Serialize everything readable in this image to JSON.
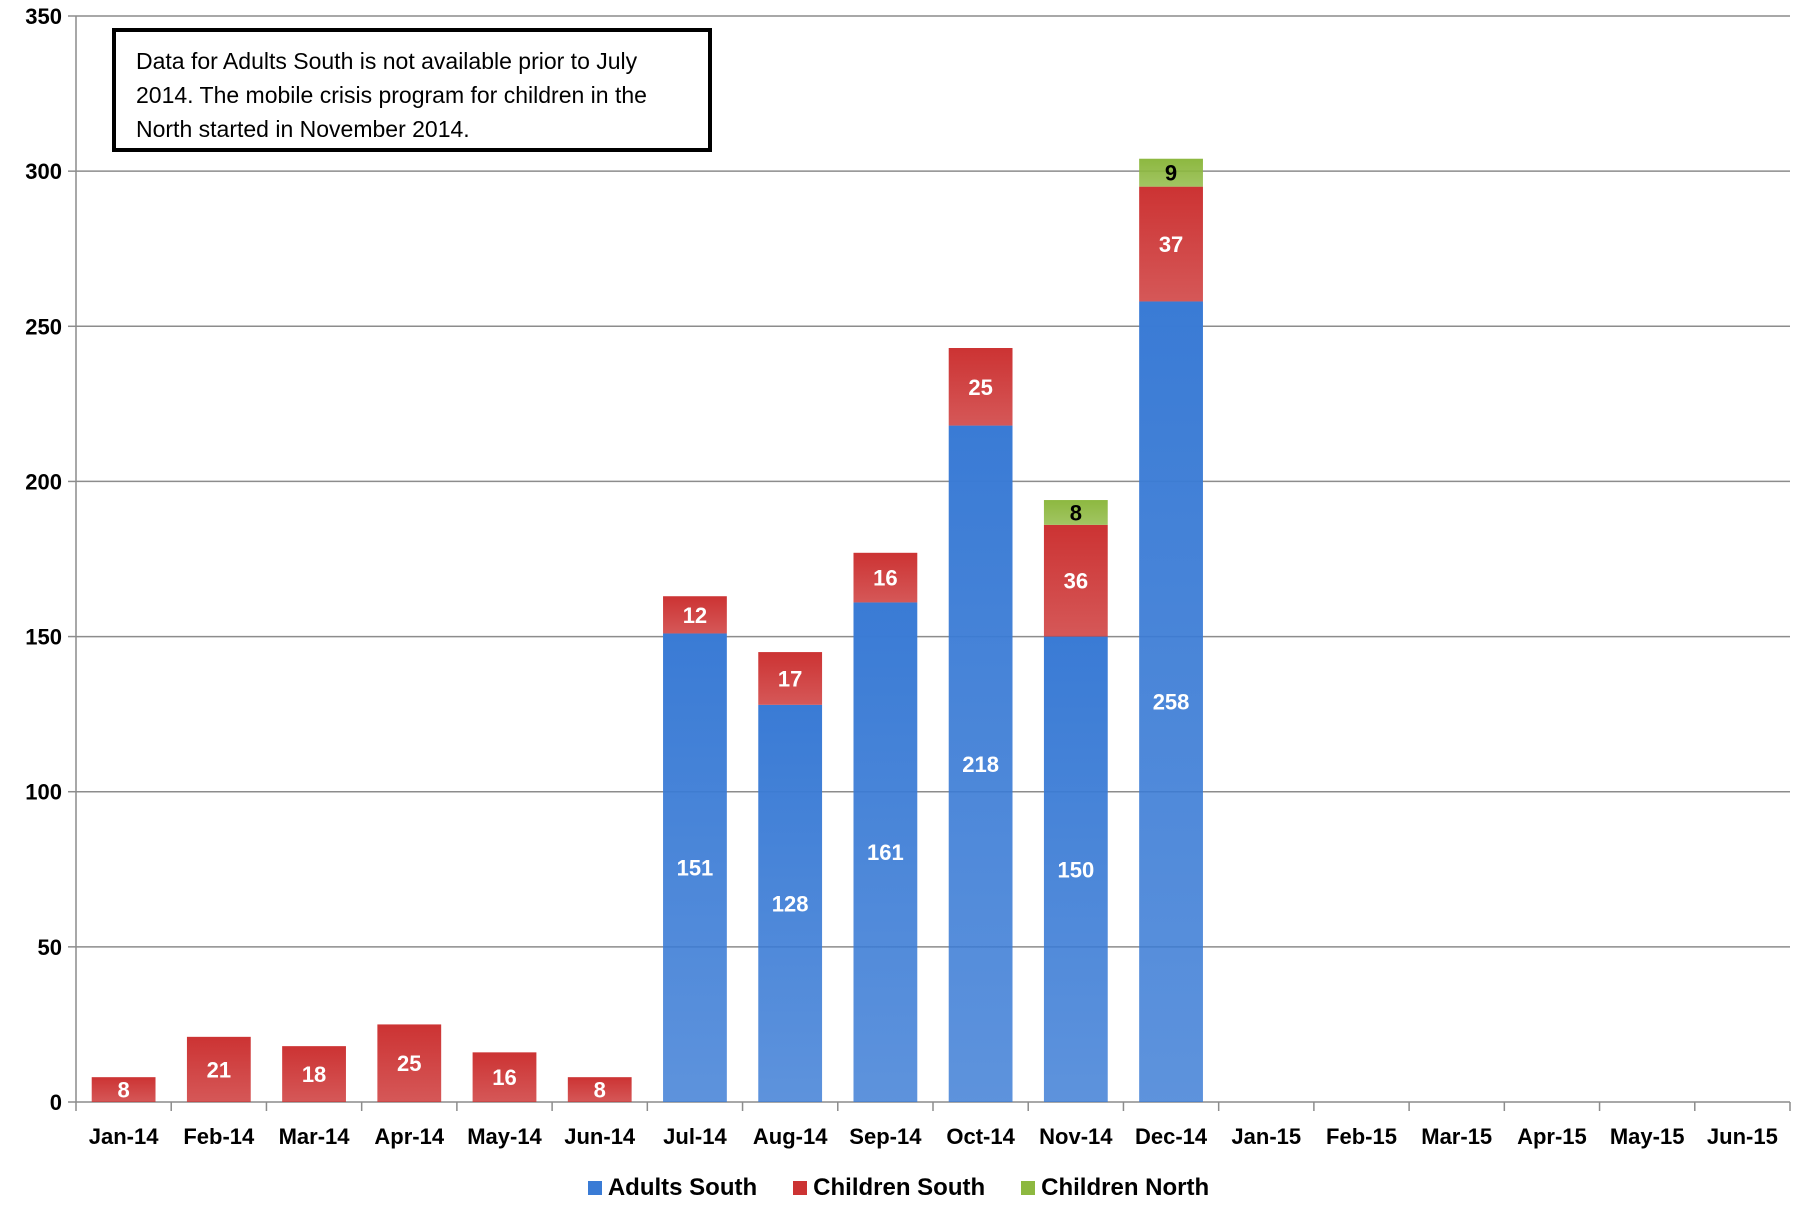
{
  "chart_data": {
    "type": "bar",
    "stacked": true,
    "categories": [
      "Jan-14",
      "Feb-14",
      "Mar-14",
      "Apr-14",
      "May-14",
      "Jun-14",
      "Jul-14",
      "Aug-14",
      "Sep-14",
      "Oct-14",
      "Nov-14",
      "Dec-14",
      "Jan-15",
      "Feb-15",
      "Mar-15",
      "Apr-15",
      "May-15",
      "Jun-15"
    ],
    "series": [
      {
        "name": "Adults South",
        "color": "#3a7bd5",
        "values": [
          null,
          null,
          null,
          null,
          null,
          null,
          151,
          128,
          161,
          218,
          150,
          258,
          null,
          null,
          null,
          null,
          null,
          null
        ]
      },
      {
        "name": "Children South",
        "color": "#cc3333",
        "values": [
          8,
          21,
          18,
          25,
          16,
          8,
          12,
          17,
          16,
          25,
          36,
          37,
          null,
          null,
          null,
          null,
          null,
          null
        ]
      },
      {
        "name": "Children North",
        "color": "#8db840",
        "values": [
          null,
          null,
          null,
          null,
          null,
          null,
          null,
          null,
          null,
          null,
          8,
          9,
          null,
          null,
          null,
          null,
          null,
          null
        ]
      }
    ],
    "ylim": [
      0,
      350
    ],
    "yticks": [
      0,
      50,
      100,
      150,
      200,
      250,
      300,
      350
    ],
    "grid": true,
    "legend_position": "bottom",
    "annotation": "Data for Adults South is not available prior to July 2014.  The mobile crisis program for children in the North started in November 2014."
  }
}
